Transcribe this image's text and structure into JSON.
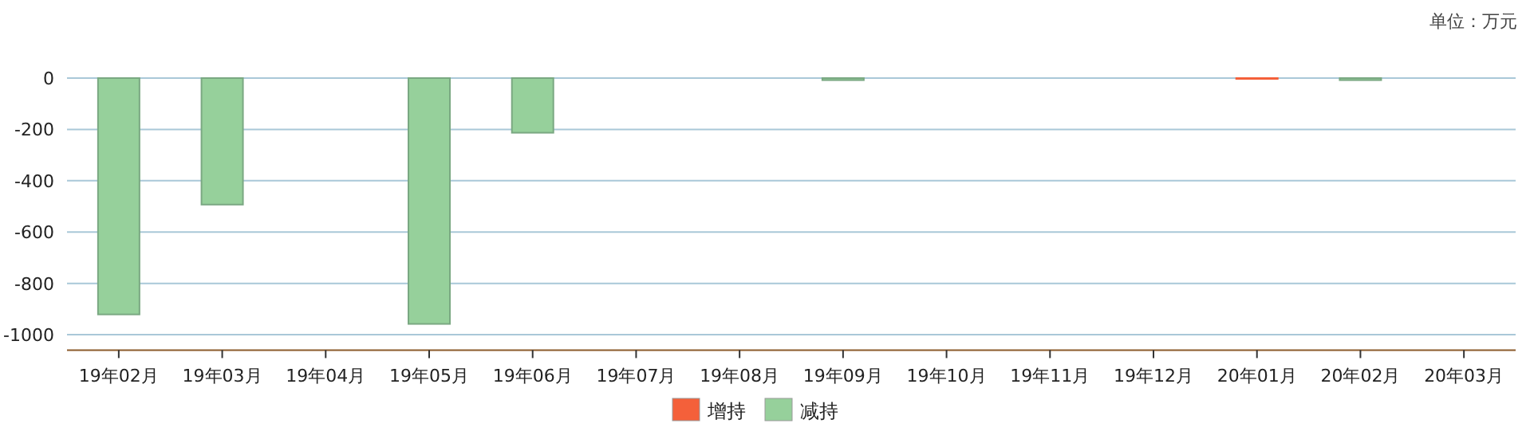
{
  "chart_data": {
    "type": "bar",
    "stacked": true,
    "categories": [
      "19年02月",
      "19年03月",
      "19年04月",
      "19年05月",
      "19年06月",
      "19年07月",
      "19年08月",
      "19年09月",
      "19年10月",
      "19年11月",
      "19年12月",
      "20年01月",
      "20年02月",
      "20年03月"
    ],
    "series": [
      {
        "name": "增持",
        "color": "#f4603a",
        "values": [
          null,
          null,
          null,
          null,
          null,
          null,
          null,
          null,
          null,
          null,
          null,
          0,
          null,
          null
        ]
      },
      {
        "name": "减持",
        "color": "#96d09b",
        "values": [
          -921,
          -493,
          null,
          -958,
          -213,
          null,
          null,
          -8,
          null,
          null,
          null,
          null,
          -8,
          null
        ]
      }
    ],
    "ylim": [
      -1060,
      0
    ],
    "yticks": [
      0,
      -200,
      -400,
      -600,
      -800,
      -1000
    ],
    "grid": "y",
    "legend": "bottom",
    "annotations": [
      "单位：万元"
    ]
  }
}
